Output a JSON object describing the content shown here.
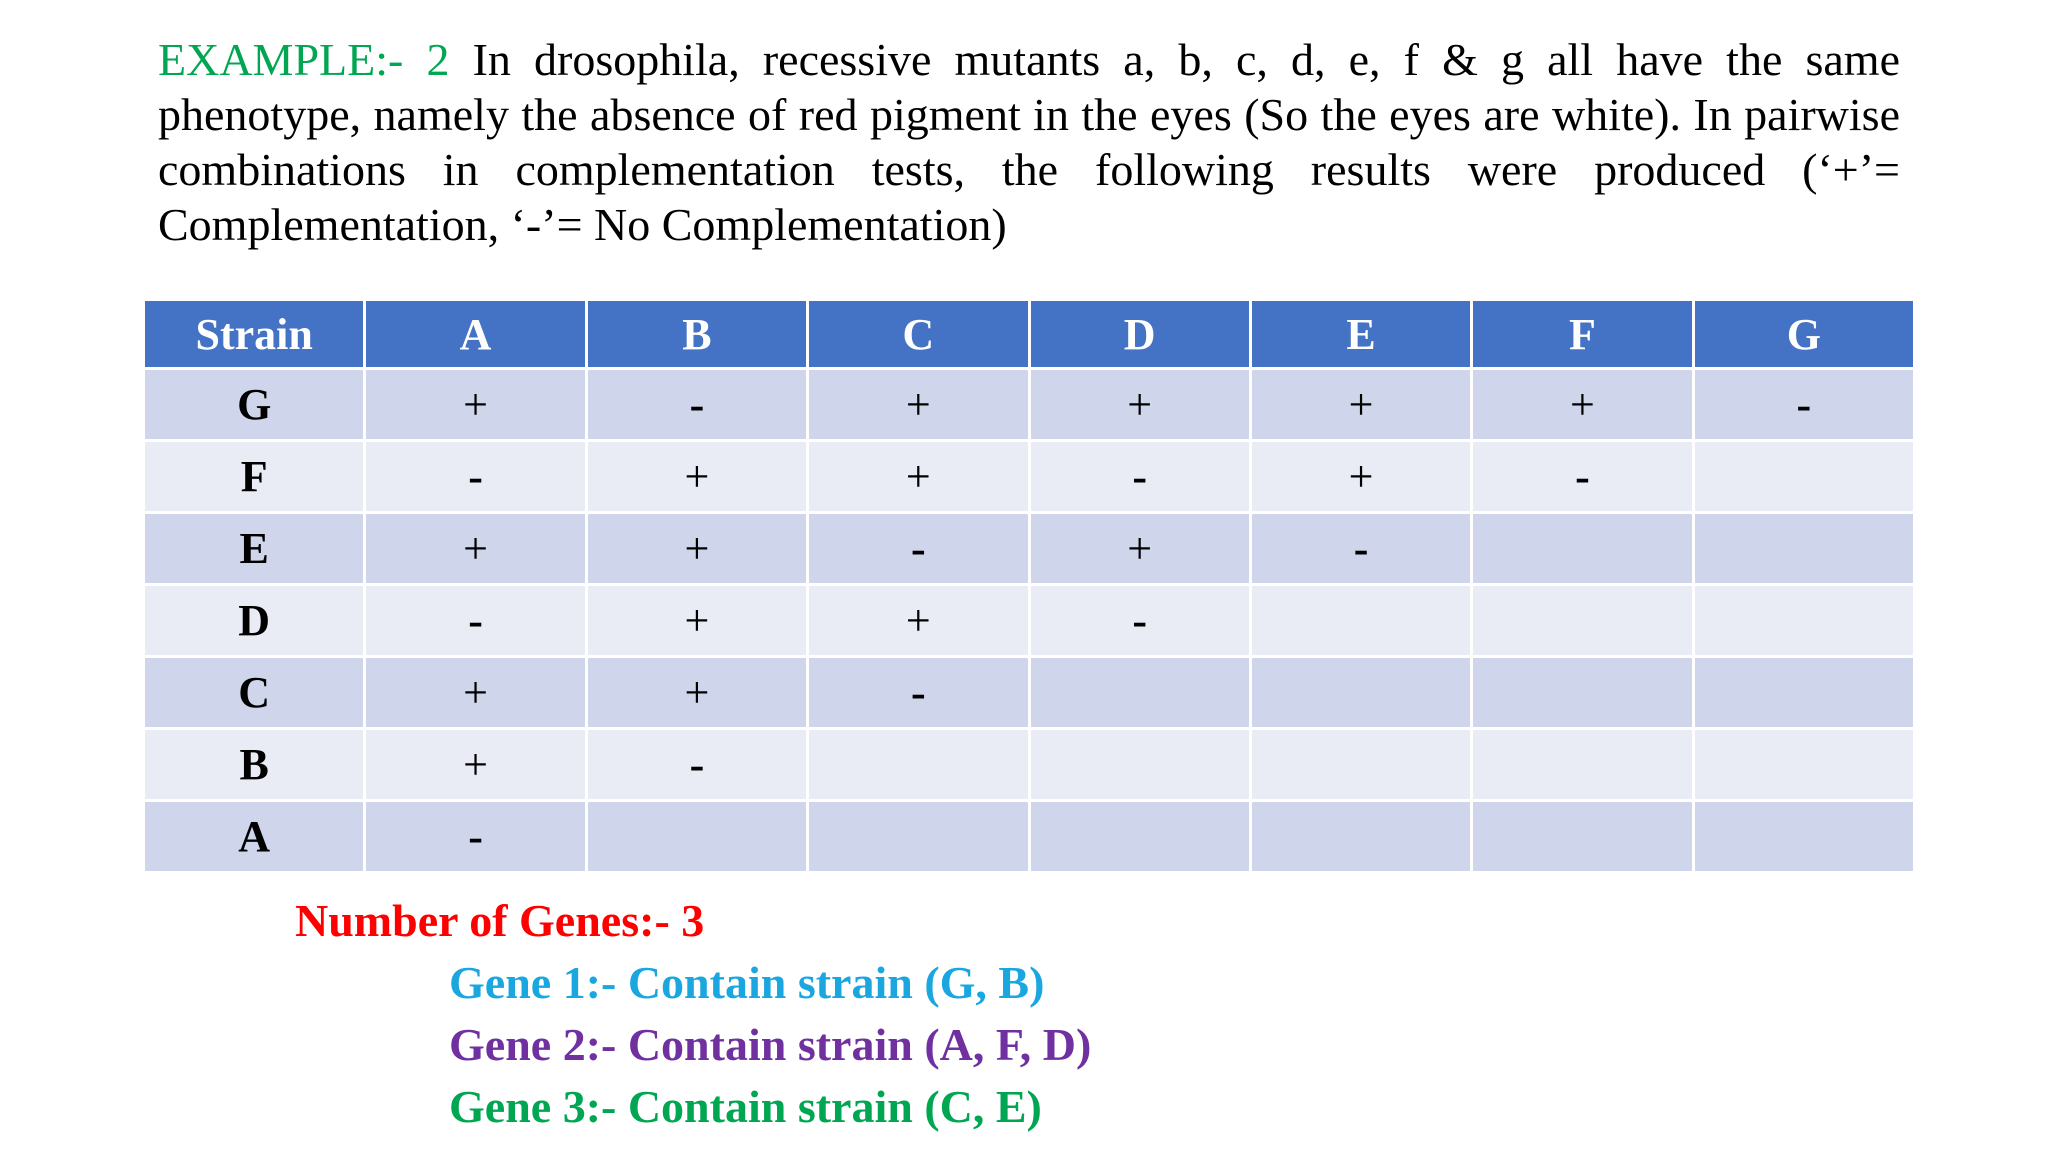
{
  "intro": {
    "label": "EXAMPLE:- 2",
    "text": " In drosophila, recessive mutants a, b, c, d, e, f & g all have the same phenotype, namely the absence of red pigment in the eyes (So the eyes are white). In pairwise combinations in complementation tests, the following results were produced (‘+’= Complementation, ‘-’= No Complementation)"
  },
  "table": {
    "corner": "Strain",
    "columns": [
      "A",
      "B",
      "C",
      "D",
      "E",
      "F",
      "G"
    ],
    "rows": [
      {
        "strain": "G",
        "cells": [
          "+",
          "-",
          "+",
          "+",
          "+",
          "+",
          "-"
        ]
      },
      {
        "strain": "F",
        "cells": [
          "-",
          "+",
          "+",
          "-",
          "+",
          "-",
          ""
        ]
      },
      {
        "strain": "E",
        "cells": [
          "+",
          "+",
          "-",
          "+",
          "-",
          "",
          ""
        ]
      },
      {
        "strain": "D",
        "cells": [
          "-",
          "+",
          "+",
          "-",
          "",
          "",
          ""
        ]
      },
      {
        "strain": "C",
        "cells": [
          "+",
          "+",
          "-",
          "",
          "",
          "",
          ""
        ]
      },
      {
        "strain": "B",
        "cells": [
          "+",
          "-",
          "",
          "",
          "",
          "",
          ""
        ]
      },
      {
        "strain": "A",
        "cells": [
          "-",
          "",
          "",
          "",
          "",
          "",
          ""
        ]
      }
    ]
  },
  "summary": {
    "title": "Number of Genes:- 3",
    "genes": [
      {
        "text": "Gene 1:- Contain strain (G, B)",
        "color": "#1AA7E0"
      },
      {
        "text": "Gene 2:- Contain strain (A, F, D)",
        "color": "#7030A0"
      },
      {
        "text": "Gene 3:- Contain strain (C, E)",
        "color": "#00A651"
      }
    ]
  },
  "colors": {
    "label_green": "#00A651",
    "header_blue": "#4472C4",
    "row_dark": "#CFD5EA",
    "row_light": "#E9EBF5",
    "summary_red": "#FF0000"
  }
}
